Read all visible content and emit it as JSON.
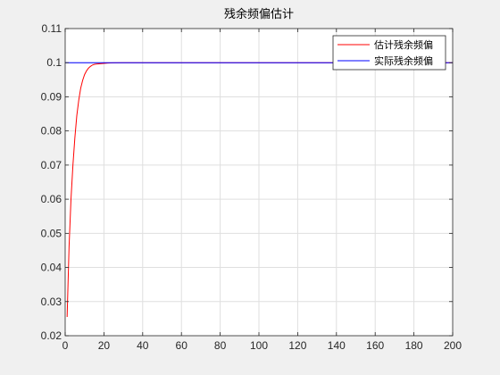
{
  "chart_data": {
    "type": "line",
    "title": "残余频偏估计",
    "xlabel": "",
    "ylabel": "",
    "xlim": [
      0,
      200
    ],
    "ylim": [
      0.02,
      0.11
    ],
    "x_ticks": [
      0,
      20,
      40,
      60,
      80,
      100,
      120,
      140,
      160,
      180,
      200
    ],
    "y_ticks": [
      0.02,
      0.03,
      0.04,
      0.05,
      0.06,
      0.07,
      0.08,
      0.09,
      0.1,
      0.11
    ],
    "x_tick_labels": [
      "0",
      "20",
      "40",
      "60",
      "80",
      "100",
      "120",
      "140",
      "160",
      "180",
      "200"
    ],
    "y_tick_labels": [
      "0.02",
      "0.03",
      "0.04",
      "0.05",
      "0.06",
      "0.07",
      "0.08",
      "0.09",
      "0.1",
      "0.11"
    ],
    "grid": true,
    "legend_position": "top-right",
    "series": [
      {
        "name": "估计残余频偏",
        "color": "#ff0000",
        "x": [
          1,
          2,
          3,
          4,
          5,
          6,
          7,
          8,
          9,
          10,
          11,
          12,
          13,
          14,
          15,
          16,
          18,
          20,
          22,
          25,
          30,
          35,
          40,
          50,
          60,
          80,
          100,
          120,
          140,
          160,
          180,
          200
        ],
        "y": [
          0.0255,
          0.046,
          0.06,
          0.07,
          0.078,
          0.0845,
          0.089,
          0.0925,
          0.0948,
          0.0965,
          0.0976,
          0.0984,
          0.0989,
          0.0993,
          0.0995,
          0.0996,
          0.0997,
          0.0998,
          0.0999,
          0.09995,
          0.1,
          0.1,
          0.1,
          0.1,
          0.1,
          0.1,
          0.1,
          0.1,
          0.1,
          0.1,
          0.1,
          0.1
        ]
      },
      {
        "name": "实际残余频偏",
        "color": "#0000ff",
        "x": [
          0,
          200
        ],
        "y": [
          0.1,
          0.1
        ]
      }
    ]
  }
}
